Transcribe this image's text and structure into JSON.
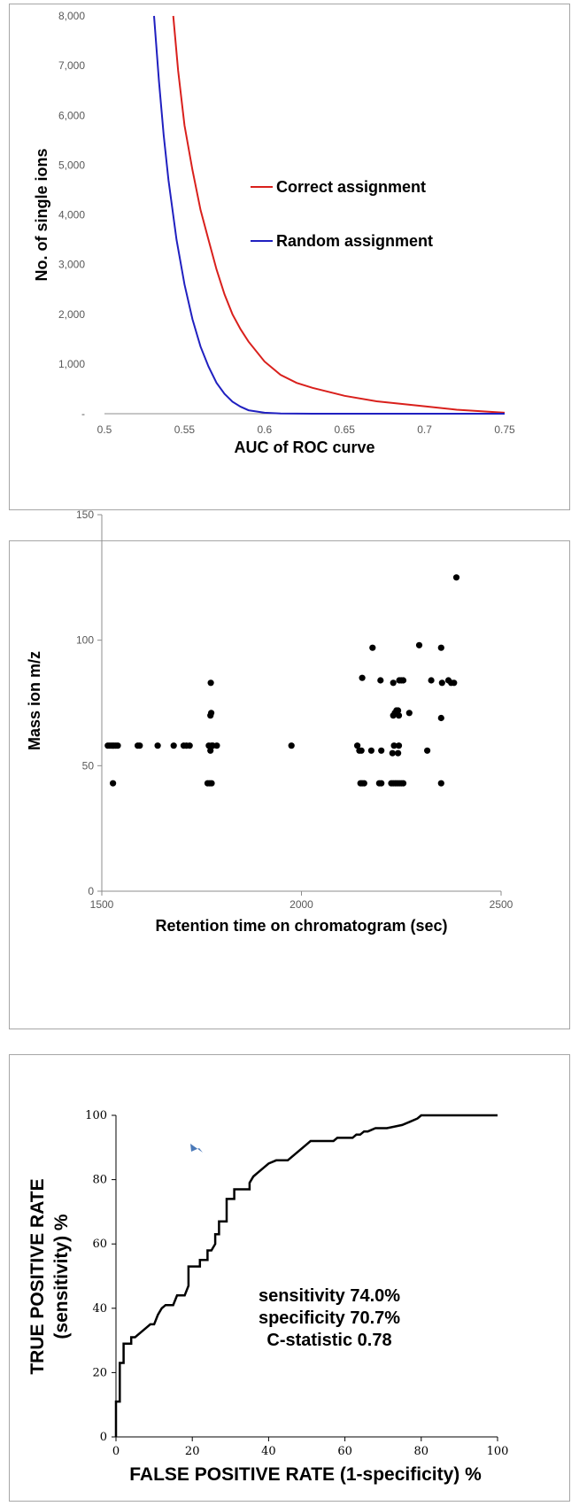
{
  "chart_data": [
    {
      "type": "line",
      "xlabel": "AUC of ROC curve",
      "ylabel": "No. of single ions",
      "xlim": [
        0.5,
        0.75
      ],
      "ylim": [
        0,
        8000
      ],
      "xticks": [
        "0.5",
        "0.55",
        "0.6",
        "0.65",
        "0.7",
        "0.75"
      ],
      "yticks": [
        "-",
        "1,000",
        "2,000",
        "3,000",
        "4,000",
        "5,000",
        "6,000",
        "7,000",
        "8,000"
      ],
      "legend_position": "right",
      "series": [
        {
          "name": "Correct assignment",
          "color": "#d9201c",
          "x": [
            0.543,
            0.546,
            0.55,
            0.555,
            0.56,
            0.565,
            0.57,
            0.575,
            0.58,
            0.585,
            0.59,
            0.6,
            0.61,
            0.62,
            0.63,
            0.65,
            0.67,
            0.7,
            0.72,
            0.75
          ],
          "y": [
            8000,
            6900,
            5800,
            4900,
            4100,
            3500,
            2900,
            2400,
            2000,
            1700,
            1450,
            1050,
            780,
            620,
            520,
            360,
            250,
            150,
            80,
            20
          ]
        },
        {
          "name": "Random assignment",
          "color": "#2020c0",
          "x": [
            0.531,
            0.534,
            0.537,
            0.54,
            0.545,
            0.55,
            0.555,
            0.56,
            0.565,
            0.57,
            0.575,
            0.58,
            0.585,
            0.59,
            0.6,
            0.61,
            0.63,
            0.66,
            0.7,
            0.75
          ],
          "y": [
            8000,
            6700,
            5600,
            4700,
            3500,
            2600,
            1900,
            1350,
            950,
            620,
            400,
            240,
            140,
            70,
            20,
            5,
            0,
            0,
            0,
            0
          ]
        }
      ]
    },
    {
      "type": "scatter",
      "xlabel": "Retention time on chromatogram (sec)",
      "ylabel": "Mass ion m/z",
      "xlim": [
        1500,
        2500
      ],
      "ylim": [
        0,
        150
      ],
      "xticks": [
        "1500",
        "2000",
        "2500"
      ],
      "yticks": [
        "0",
        "50",
        "100",
        "150"
      ],
      "grid": false,
      "color": "#000000",
      "points": [
        [
          1515,
          58
        ],
        [
          1520,
          58
        ],
        [
          1525,
          58
        ],
        [
          1530,
          58
        ],
        [
          1535,
          58
        ],
        [
          1540,
          58
        ],
        [
          1528,
          43
        ],
        [
          1590,
          58
        ],
        [
          1595,
          58
        ],
        [
          1640,
          58
        ],
        [
          1680,
          58
        ],
        [
          1705,
          58
        ],
        [
          1712,
          58
        ],
        [
          1720,
          58
        ],
        [
          1765,
          43
        ],
        [
          1770,
          43
        ],
        [
          1775,
          43
        ],
        [
          1768,
          58
        ],
        [
          1772,
          56
        ],
        [
          1775,
          58
        ],
        [
          1778,
          58
        ],
        [
          1772,
          70
        ],
        [
          1774,
          71
        ],
        [
          1773,
          83
        ],
        [
          1788,
          58
        ],
        [
          1975,
          58
        ],
        [
          2140,
          58
        ],
        [
          2145,
          56
        ],
        [
          2150,
          56
        ],
        [
          2148,
          43
        ],
        [
          2152,
          43
        ],
        [
          2157,
          43
        ],
        [
          2152,
          85
        ],
        [
          2175,
          56
        ],
        [
          2178,
          97
        ],
        [
          2195,
          43
        ],
        [
          2200,
          43
        ],
        [
          2198,
          84
        ],
        [
          2200,
          56
        ],
        [
          2225,
          43
        ],
        [
          2230,
          43
        ],
        [
          2235,
          43
        ],
        [
          2240,
          43
        ],
        [
          2245,
          43
        ],
        [
          2250,
          43
        ],
        [
          2255,
          43
        ],
        [
          2228,
          55
        ],
        [
          2242,
          55
        ],
        [
          2232,
          58
        ],
        [
          2244,
          58
        ],
        [
          2230,
          70
        ],
        [
          2234,
          71
        ],
        [
          2238,
          72
        ],
        [
          2240,
          71
        ],
        [
          2244,
          70
        ],
        [
          2242,
          72
        ],
        [
          2230,
          83
        ],
        [
          2245,
          84
        ],
        [
          2250,
          84
        ],
        [
          2255,
          84
        ],
        [
          2270,
          71
        ],
        [
          2295,
          98
        ],
        [
          2315,
          56
        ],
        [
          2325,
          84
        ],
        [
          2350,
          43
        ],
        [
          2350,
          69
        ],
        [
          2350,
          97
        ],
        [
          2352,
          83
        ],
        [
          2368,
          84
        ],
        [
          2375,
          83
        ],
        [
          2382,
          83
        ],
        [
          2388,
          125
        ]
      ]
    },
    {
      "type": "line",
      "xlabel": "FALSE POSITIVE RATE (1-specificity) %",
      "ylabel": "TRUE POSITIVE RATE (sensitivity) %",
      "xlim": [
        0,
        100
      ],
      "ylim": [
        0,
        100
      ],
      "xticks": [
        "0",
        "20",
        "40",
        "60",
        "80",
        "100"
      ],
      "yticks": [
        "0",
        "20",
        "40",
        "60",
        "80",
        "100"
      ],
      "color": "#000000",
      "x": [
        0,
        0,
        1,
        1,
        2,
        2,
        4,
        4,
        5,
        6,
        7,
        8,
        9,
        10,
        11,
        12,
        13,
        15,
        16,
        18,
        19,
        19,
        22,
        22,
        24,
        24,
        25,
        26,
        26,
        27,
        27,
        29,
        29,
        31,
        31,
        35,
        35,
        36,
        37,
        38,
        39,
        40,
        42,
        42,
        45,
        46,
        47,
        48,
        49,
        50,
        51,
        55,
        56,
        57,
        58,
        60,
        62,
        63,
        64,
        65,
        66,
        68,
        70,
        71,
        75,
        77,
        79,
        80,
        100
      ],
      "y": [
        0,
        11,
        11,
        23,
        23,
        29,
        29,
        31,
        31,
        32,
        33,
        34,
        35,
        35,
        38,
        40,
        41,
        41,
        44,
        44,
        47,
        53,
        53,
        55,
        55,
        58,
        58,
        60,
        63,
        63,
        67,
        67,
        74,
        74,
        77,
        77,
        79,
        81,
        82,
        83,
        84,
        85,
        86,
        86,
        86,
        87,
        88,
        89,
        90,
        91,
        92,
        92,
        92,
        92,
        93,
        93,
        93,
        94,
        94,
        95,
        95,
        96,
        96,
        96,
        97,
        98,
        99,
        100,
        100
      ],
      "annotations": [
        "sensitivity 74.0%",
        "specificity 70.7%",
        "C-statistic 0.78"
      ],
      "arrow_color": "#4a79b8"
    }
  ]
}
